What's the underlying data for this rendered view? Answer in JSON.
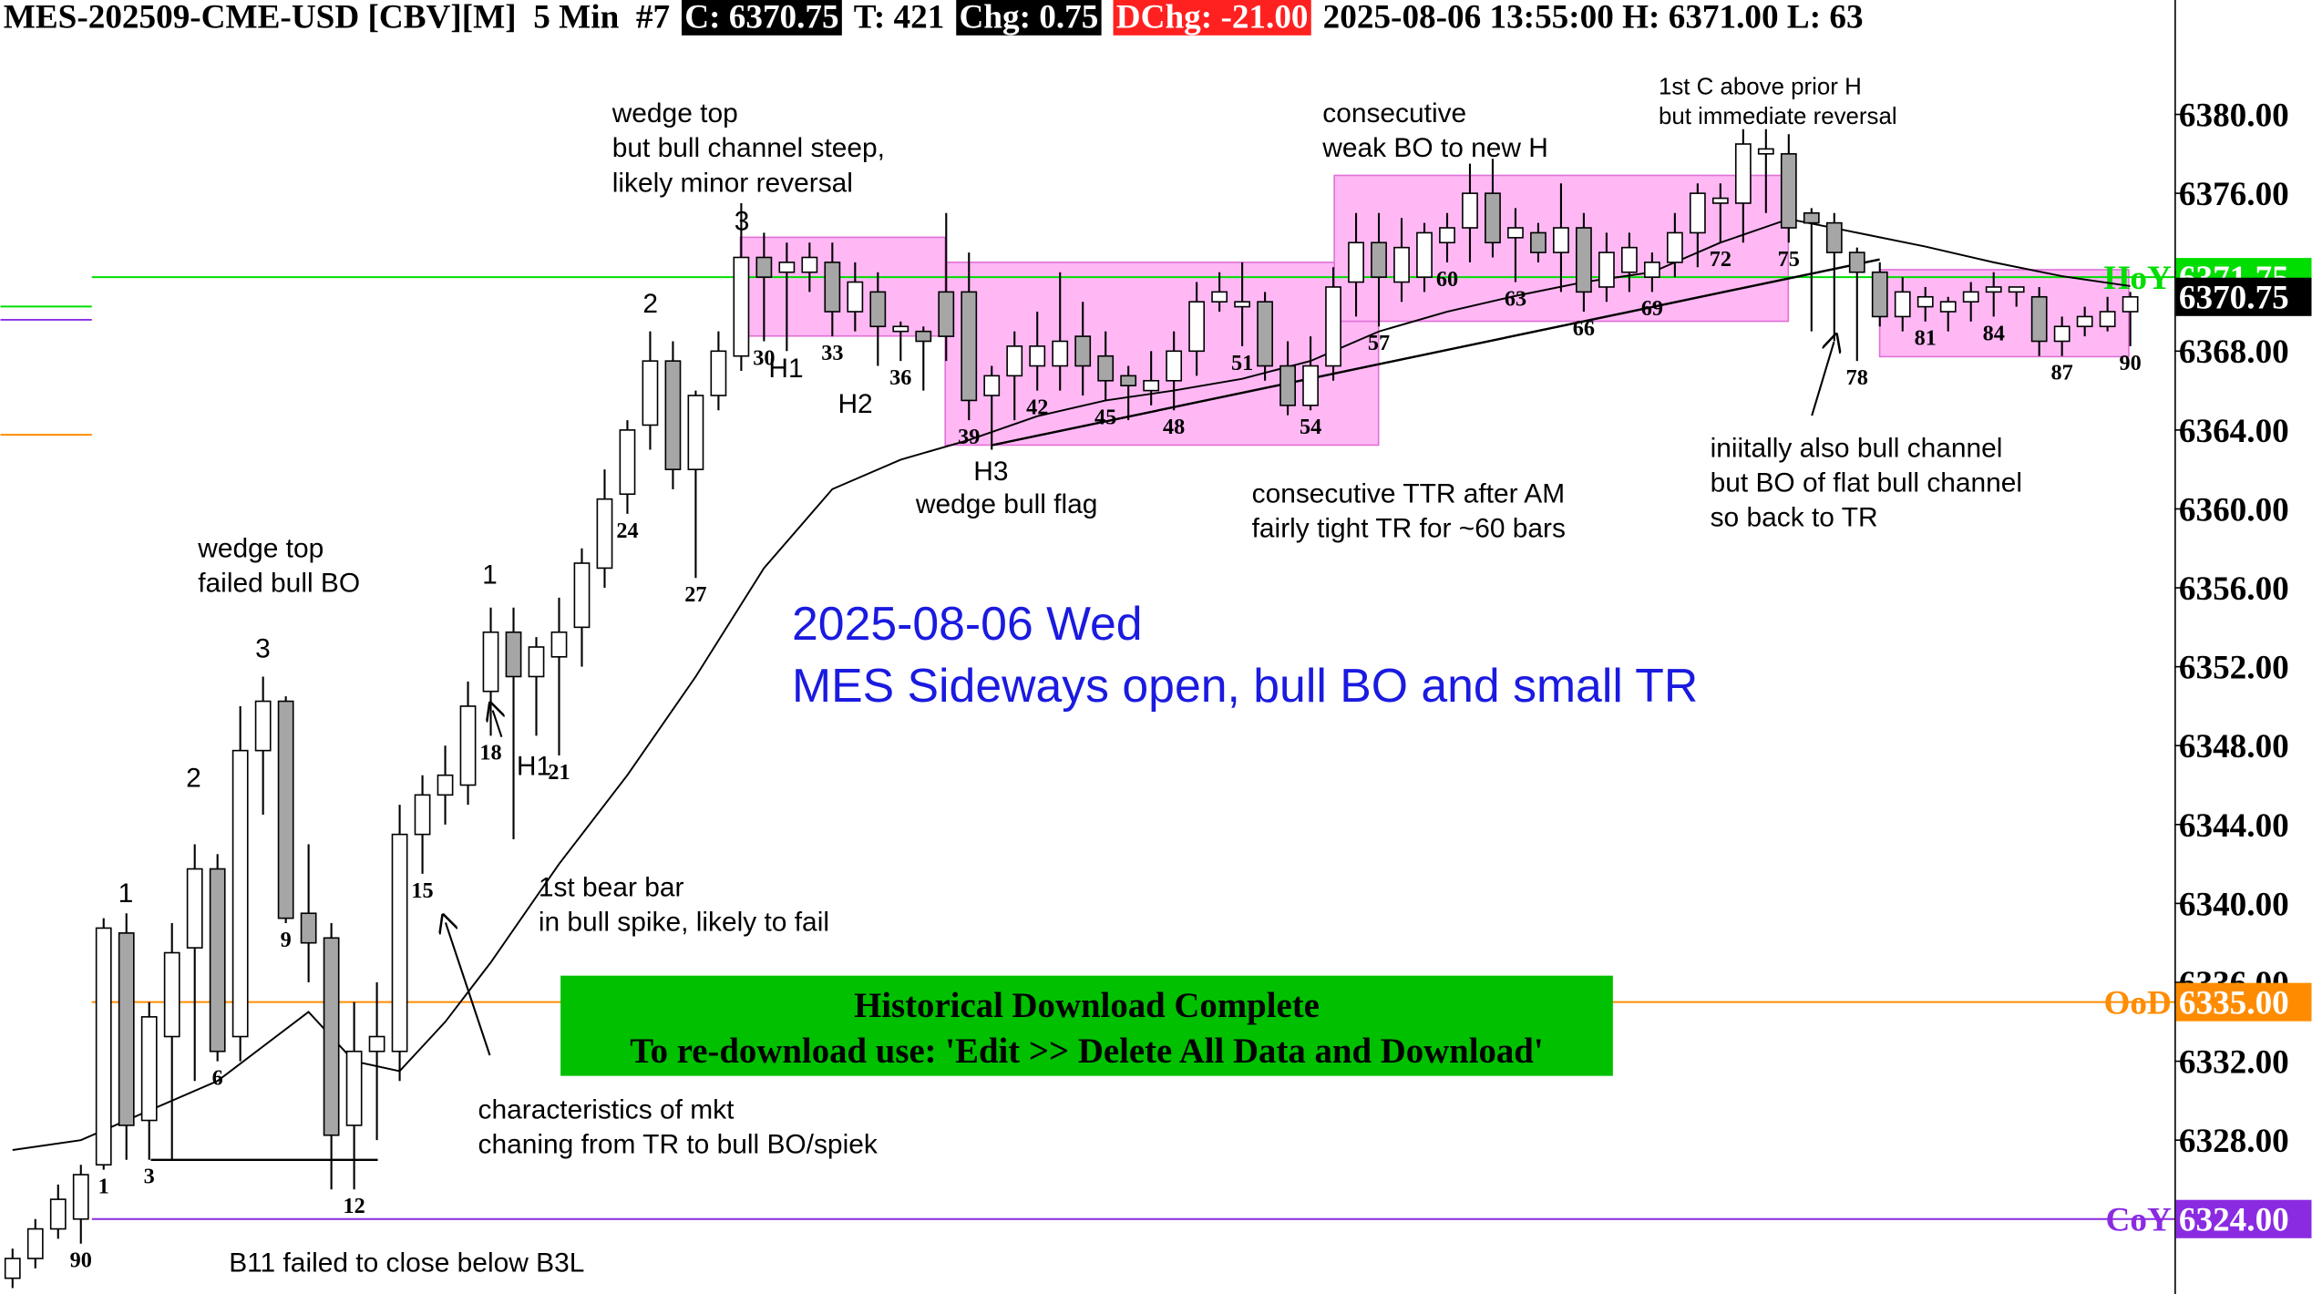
{
  "chart_data": {
    "type": "candlestick",
    "header": [
      {
        "text": "MES-202509-CME-USD [CBV][M]  5 Min  #7"
      },
      {
        "text": "C: 6370.75",
        "color": "#ffffff",
        "background": "#000000"
      },
      {
        "text": "T: 421"
      },
      {
        "text": "Chg: 0.75",
        "color": "#ffffff",
        "background": "#000000"
      },
      {
        "text": "DChg: -21.00",
        "color": "#ffffff",
        "background": "#ff2020"
      },
      {
        "text": "2025-08-06 13:55:00 H: 6371.00 L: 63"
      }
    ],
    "title": "2025-08-06 Wed",
    "subtitle": "MES Sideways open, bull BO and small TR",
    "title_color": "#1a1ae0",
    "up_color": "#ffffff",
    "down_color": "#a6a6a6",
    "open": [
      6321,
      6322,
      6323.5,
      6324,
      6326.75,
      6338.5,
      6329,
      6333.25,
      6337.75,
      6341.75,
      6333.25,
      6347.75,
      6350.25,
      6339.5,
      6338.25,
      6328.75,
      6332.5,
      6332.5,
      6343.5,
      6345.5,
      6346,
      6350.75,
      6353.75,
      6351.5,
      6352.5,
      6354,
      6357,
      6360.75,
      6364.25,
      6367.5,
      6362,
      6365.75,
      6367.75,
      6372.75,
      6372,
      6372,
      6372.5,
      6370,
      6371,
      6369,
      6369,
      6371,
      6371,
      6365.75,
      6366.75,
      6367.25,
      6367.25,
      6368.75,
      6367.75,
      6366.75,
      6366,
      6366.5,
      6368,
      6370.5,
      6370.25,
      6370.5,
      6367.25,
      6365.25,
      6367.25,
      6371.5,
      6373.5,
      6371.5,
      6371.75,
      6373.5,
      6374.25,
      6376,
      6373.75,
      6374,
      6373,
      6374.25,
      6371.25,
      6372,
      6371.75,
      6372.5,
      6374,
      6375.5,
      6375.5,
      6378,
      6378,
      6375,
      6374.5,
      6373,
      6372,
      6369.75,
      6370.25,
      6370,
      6370.5,
      6371,
      6371,
      6370.75,
      6368.5,
      6369.25,
      6369.25,
      6370
    ],
    "high": [
      6322.5,
      6324,
      6325.75,
      6326.75,
      6339.25,
      6339.5,
      6335,
      6339,
      6343,
      6342.5,
      6350,
      6351.5,
      6350.5,
      6343,
      6339,
      6335,
      6336,
      6345,
      6346.5,
      6348,
      6351.25,
      6355,
      6355,
      6353.5,
      6355.5,
      6358,
      6362,
      6364.5,
      6369,
      6368.5,
      6366,
      6369,
      6375.5,
      6374,
      6373.5,
      6373.5,
      6373.5,
      6372.5,
      6372,
      6369.5,
      6369.25,
      6375,
      6373,
      6367.25,
      6369,
      6370,
      6372,
      6370.5,
      6369,
      6367.25,
      6368,
      6369,
      6371.5,
      6372,
      6372.5,
      6371,
      6368.5,
      6368.75,
      6372.25,
      6375,
      6375,
      6374.75,
      6374.5,
      6375,
      6377.5,
      6377.75,
      6375.25,
      6374.5,
      6376.5,
      6375,
      6374,
      6374,
      6373,
      6375,
      6376.5,
      6376.5,
      6379.25,
      6379.25,
      6379,
      6375.25,
      6375,
      6373.25,
      6372.5,
      6371.75,
      6371.25,
      6370.75,
      6371.5,
      6372,
      6371.25,
      6371.25,
      6369.75,
      6370.25,
      6370.75,
      6371
    ],
    "low": [
      6320.5,
      6321.5,
      6323,
      6322.75,
      6326.5,
      6327,
      6327,
      6327,
      6331,
      6332,
      6332,
      6344.5,
      6339,
      6336,
      6325.5,
      6325.5,
      6328,
      6331,
      6341.5,
      6344,
      6345,
      6348.5,
      6343.25,
      6348.5,
      6347.5,
      6352,
      6356,
      6359.75,
      6363,
      6361,
      6356.5,
      6365,
      6367,
      6368.5,
      6368,
      6371,
      6368.75,
      6369,
      6367.25,
      6367.5,
      6366,
      6367.5,
      6364.5,
      6363,
      6364.5,
      6366,
      6366,
      6365.75,
      6365.5,
      6364.5,
      6365.25,
      6365,
      6366.75,
      6370,
      6368.25,
      6366.5,
      6364.75,
      6365,
      6366.5,
      6369.75,
      6369.25,
      6370.5,
      6371,
      6372.5,
      6372.5,
      6372.75,
      6371.5,
      6372.5,
      6371,
      6370,
      6370.5,
      6371,
      6371,
      6371.75,
      6372.25,
      6373.5,
      6373.5,
      6375,
      6373.5,
      6369,
      6368.5,
      6367.5,
      6369.25,
      6369,
      6369.5,
      6369,
      6369.5,
      6369.75,
      6370.25,
      6367.75,
      6367.75,
      6368.75,
      6369,
      6368.25
    ],
    "close": [
      6322,
      6323.5,
      6325,
      6326.25,
      6338.75,
      6328.75,
      6334.25,
      6337.5,
      6341.75,
      6332.5,
      6347.75,
      6350.25,
      6339.25,
      6338,
      6328.25,
      6332.5,
      6333.25,
      6343.5,
      6345.5,
      6346.5,
      6350,
      6353.75,
      6351.5,
      6353,
      6353.75,
      6357.25,
      6360.5,
      6364,
      6367.5,
      6362,
      6365.75,
      6368,
      6372.75,
      6371.75,
      6372.5,
      6372.75,
      6370,
      6371.5,
      6369.25,
      6369.25,
      6368.5,
      6368.75,
      6365.5,
      6366.75,
      6368.25,
      6368.25,
      6368.5,
      6367.25,
      6366.5,
      6366.25,
      6366.5,
      6368,
      6370.5,
      6371,
      6370.5,
      6367.25,
      6365.25,
      6367.25,
      6371.25,
      6373.5,
      6371.75,
      6373.25,
      6374,
      6374.25,
      6376,
      6373.5,
      6374.25,
      6373,
      6374.25,
      6371,
      6373,
      6373.25,
      6372.5,
      6374,
      6376,
      6375.75,
      6378.5,
      6378.25,
      6374.25,
      6374.5,
      6373,
      6372,
      6369.75,
      6371,
      6370.75,
      6370.5,
      6371,
      6371.25,
      6371.25,
      6368.5,
      6369.25,
      6369.75,
      6370,
      6370.75
    ],
    "bar_labels": [
      null,
      null,
      null,
      "90",
      "1",
      null,
      "3",
      null,
      null,
      "6",
      null,
      null,
      "9",
      null,
      null,
      "12",
      null,
      null,
      "15",
      null,
      null,
      "18",
      null,
      null,
      "21",
      null,
      null,
      "24",
      null,
      null,
      "27",
      null,
      null,
      "30",
      null,
      null,
      "33",
      null,
      null,
      "36",
      null,
      null,
      "39",
      null,
      null,
      "42",
      null,
      null,
      "45",
      null,
      null,
      "48",
      null,
      null,
      "51",
      null,
      null,
      "54",
      null,
      null,
      "57",
      null,
      null,
      "60",
      null,
      null,
      "63",
      null,
      null,
      "66",
      null,
      null,
      "69",
      null,
      null,
      "72",
      null,
      null,
      "75",
      null,
      null,
      "78",
      null,
      null,
      "81",
      null,
      null,
      "84",
      null,
      null,
      "87",
      null,
      null,
      "90"
    ],
    "ema": {
      "color": "#000000",
      "x": [
        0,
        3,
        4,
        9,
        13,
        15,
        17,
        19,
        21,
        24,
        27,
        30,
        33,
        36,
        39,
        42,
        45,
        48,
        51,
        54,
        57,
        60,
        63,
        66,
        69,
        72,
        75,
        78,
        81,
        84,
        87,
        90,
        93
      ],
      "values": [
        6327.5,
        6328,
        6328.5,
        6331,
        6334.5,
        6332,
        6331.5,
        6334,
        6337,
        6342,
        6346.5,
        6351.5,
        6357,
        6361,
        6362.5,
        6363.5,
        6364.7,
        6365.5,
        6366,
        6366.6,
        6367.5,
        6369,
        6370,
        6370.8,
        6371.5,
        6372,
        6373.5,
        6374.7,
        6374,
        6373.3,
        6372.5,
        6371.8,
        6371.3
      ]
    },
    "levels": [
      {
        "name": "HoY",
        "value": 6371.75,
        "label": "6371.75",
        "color": "#00dd00"
      },
      {
        "name": "OoD",
        "value": 6335,
        "label": "6335.00",
        "color": "#ff8c00"
      },
      {
        "name": "CoY",
        "value": 6324,
        "label": "6324.00",
        "color": "#8a2be2"
      }
    ],
    "last_price": {
      "value": 6370.75,
      "label": "6370.75"
    },
    "ylim": [
      6320.2,
      6385.8
    ],
    "yticks": [
      {
        "value": 6328,
        "label": "6328.00"
      },
      {
        "value": 6332,
        "label": "6332.00"
      },
      {
        "value": 6336,
        "label": "6336.00"
      },
      {
        "value": 6340,
        "label": "6340.00"
      },
      {
        "value": 6344,
        "label": "6344.00"
      },
      {
        "value": 6348,
        "label": "6348.00"
      },
      {
        "value": 6352,
        "label": "6352.00"
      },
      {
        "value": 6356,
        "label": "6356.00"
      },
      {
        "value": 6360,
        "label": "6360.00"
      },
      {
        "value": 6364,
        "label": "6364.00"
      },
      {
        "value": 6368,
        "label": "6368.00"
      },
      {
        "value": 6372,
        "label": "6372.00"
      },
      {
        "value": 6376,
        "label": "6376.00"
      },
      {
        "value": 6380,
        "label": "6380.00"
      }
    ],
    "grid": false,
    "annotations": [
      [
        "wedge top",
        "but bull channel steep,",
        "likely minor reversal"
      ],
      [
        "consecutive",
        "weak BO to new H"
      ],
      [
        "1st C above prior H",
        "but immediate reversal"
      ],
      [
        "wedge top",
        "failed bull BO"
      ],
      [
        "wedge bull flag"
      ],
      [
        "consecutive TTR after AM",
        "fairly tight TR for ~60 bars"
      ],
      [
        "iniitally also bull channel",
        "but BO of flat bull channel",
        "so back to TR"
      ],
      [
        "1st bear bar",
        "in bull spike, likely to fail"
      ],
      [
        "characteristics of mkt",
        "chaning from TR to bull BO/spiek"
      ],
      [
        "B11 failed to close below B3L"
      ]
    ],
    "wave_labels": [
      "3",
      "2",
      "1",
      "3",
      "2",
      "1",
      "H1",
      "H2",
      "H3",
      "H1"
    ],
    "notice": [
      "Historical Download Complete",
      "To re-download use: 'Edit >> Delete All Data and Download'"
    ]
  }
}
